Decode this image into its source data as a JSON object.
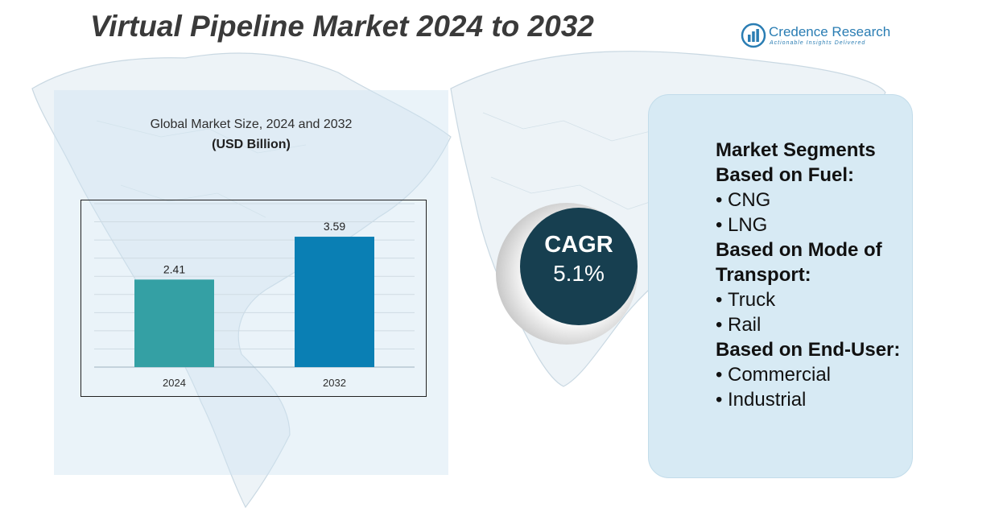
{
  "header": {
    "title": "Virtual Pipeline Market 2024 to 2032",
    "brand_name": "Credence Research",
    "brand_tagline": "Actionable Insights Delivered"
  },
  "chart_data": {
    "type": "bar",
    "title": "Global Market Size, 2024 and 2032",
    "subtitle": "(USD Billion)",
    "categories": [
      "2024",
      "2032"
    ],
    "values": [
      2.41,
      3.59
    ],
    "value_labels": [
      "2.41",
      "3.59"
    ],
    "colors": [
      "#34a0a4",
      "#0a7fb4"
    ],
    "ylim": [
      0,
      4.5
    ],
    "grid": true,
    "legend": "none"
  },
  "cagr": {
    "label": "CAGR",
    "value": "5.1%"
  },
  "segments": {
    "title_line1": "Market Segments",
    "groups": [
      {
        "heading_lines": [
          "Based on Fuel:"
        ],
        "items": [
          "CNG",
          "LNG"
        ]
      },
      {
        "heading_lines": [
          "Based on Mode of",
          "Transport:"
        ],
        "items": [
          "Truck",
          "Rail"
        ]
      },
      {
        "heading_lines": [
          "Based on End-User:"
        ],
        "items": [
          "Commercial",
          "Industrial"
        ]
      }
    ],
    "bullet": "•"
  },
  "colors": {
    "title": "#3a3a3a",
    "brand": "#2a7db3",
    "cagr_circle": "#173f50",
    "panel": "#d7eaf4"
  }
}
